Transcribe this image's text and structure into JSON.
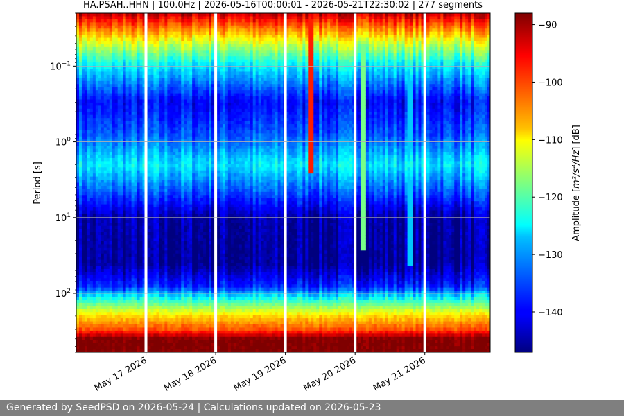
{
  "chart_data": {
    "type": "heatmap",
    "title": "HA.PSAH..HHN | 100.0Hz | 2026-05-16T00:00:01 - 2026-05-21T22:30:02 | 277 segments",
    "ylabel": "Period [s]",
    "y_scale": "log",
    "y_inverted": true,
    "ylim": [
      0.02,
      600
    ],
    "y_ticks": [
      {
        "value": 0.1,
        "base": "10",
        "exp": "−1"
      },
      {
        "value": 1,
        "base": "10",
        "exp": "0"
      },
      {
        "value": 10,
        "base": "10",
        "exp": "1"
      },
      {
        "value": 100,
        "base": "10",
        "exp": "2"
      }
    ],
    "x_range": [
      "2026-05-16T00:00:01",
      "2026-05-21T22:30:02"
    ],
    "x_ticks": [
      {
        "value": "2026-05-17",
        "label": "May 17 2026"
      },
      {
        "value": "2026-05-18",
        "label": "May 18 2026"
      },
      {
        "value": "2026-05-19",
        "label": "May 19 2026"
      },
      {
        "value": "2026-05-20",
        "label": "May 20 2026"
      },
      {
        "value": "2026-05-21",
        "label": "May 21 2026"
      }
    ],
    "data_gaps": [
      "2026-05-17",
      "2026-05-18",
      "2026-05-19",
      "2026-05-20",
      "2026-05-21"
    ],
    "grid": "horizontal",
    "colormap": "jet",
    "colorbar": {
      "label_prefix": "Amplitude [",
      "label_math": "m²/s⁴/Hz",
      "label_suffix": "] [dB]",
      "range": [
        -147,
        -88
      ],
      "ticks": [
        -90,
        -100,
        -110,
        -120,
        -130,
        -140
      ]
    },
    "spectrum_profile": [
      {
        "period": 0.02,
        "db": -92
      },
      {
        "period": 0.05,
        "db": -113
      },
      {
        "period": 0.1,
        "db": -126
      },
      {
        "period": 0.3,
        "db": -140
      },
      {
        "period": 0.8,
        "db": -135
      },
      {
        "period": 2,
        "db": -126
      },
      {
        "period": 5,
        "db": -136
      },
      {
        "period": 10,
        "db": -145
      },
      {
        "period": 40,
        "db": -146
      },
      {
        "period": 80,
        "db": -138
      },
      {
        "period": 120,
        "db": -123
      },
      {
        "period": 200,
        "db": -108
      },
      {
        "period": 300,
        "db": -100
      },
      {
        "period": 400,
        "db": -88
      },
      {
        "period": 600,
        "db": -88
      }
    ],
    "events": [
      {
        "time": "2026-05-19T09:00:00",
        "max_period": 2.5,
        "db": -97
      },
      {
        "time": "2026-05-20T03:00:00",
        "max_period": 28,
        "db": -118
      },
      {
        "time": "2026-05-20T19:00:00",
        "max_period": 45,
        "db": -128
      }
    ]
  },
  "footer": {
    "text": "Generated by SeedPSD on 2026-05-24 | Calculations updated on 2026-05-23"
  }
}
